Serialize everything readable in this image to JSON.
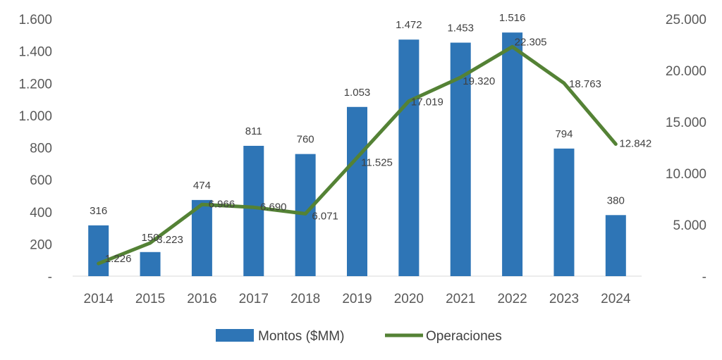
{
  "chart_data": {
    "type": "bar",
    "categories": [
      "2014",
      "2015",
      "2016",
      "2017",
      "2018",
      "2019",
      "2020",
      "2021",
      "2022",
      "2023",
      "2024"
    ],
    "series": [
      {
        "name": "Montos ($MM)",
        "type": "bar",
        "axis": "left",
        "values": [
          316,
          150,
          474,
          811,
          760,
          1053,
          1472,
          1453,
          1516,
          794,
          380
        ],
        "labels": [
          "316",
          "150",
          "474",
          "811",
          "760",
          "1.053",
          "1.472",
          "1.453",
          "1.516",
          "794",
          "380"
        ]
      },
      {
        "name": "Operaciones",
        "type": "line",
        "axis": "right",
        "values": [
          1226,
          3223,
          6966,
          6690,
          6071,
          11525,
          17019,
          19320,
          22305,
          18763,
          12842
        ],
        "labels": [
          "1.226",
          "3.223",
          "6.966",
          "6.690",
          "6.071",
          "11.525",
          "17.019",
          "19.320",
          "22.305",
          "18.763",
          "12.842"
        ]
      }
    ],
    "left_axis": {
      "ylim": [
        0,
        1600
      ],
      "ticks": [
        0,
        200,
        400,
        600,
        800,
        1000,
        1200,
        1400,
        1600
      ],
      "tick_labels": [
        "-",
        "200",
        "400",
        "600",
        "800",
        "1.000",
        "1.200",
        "1.400",
        "1.600"
      ]
    },
    "right_axis": {
      "ylim": [
        0,
        25000
      ],
      "ticks": [
        0,
        5000,
        10000,
        15000,
        20000,
        25000
      ],
      "tick_labels": [
        "-",
        "5.000",
        "10.000",
        "15.000",
        "20.000",
        "25.000"
      ]
    },
    "title": "",
    "xlabel": "",
    "ylabel": "",
    "grid": false,
    "legend_position": "bottom",
    "colors": {
      "bars": "#2E75B6",
      "line": "#548235"
    }
  }
}
